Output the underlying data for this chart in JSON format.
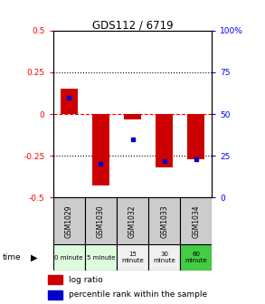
{
  "title": "GDS112 / 6719",
  "samples": [
    "GSM1029",
    "GSM1030",
    "GSM1032",
    "GSM1033",
    "GSM1034"
  ],
  "log_ratios": [
    0.15,
    -0.43,
    -0.03,
    -0.32,
    -0.27
  ],
  "percentile_ranks": [
    60,
    20,
    35,
    22,
    23
  ],
  "ylim_left": [
    -0.5,
    0.5
  ],
  "ylim_right": [
    0,
    100
  ],
  "yticks_left": [
    -0.5,
    -0.25,
    0,
    0.25,
    0.5
  ],
  "yticks_right": [
    0,
    25,
    50,
    75,
    100
  ],
  "ytick_labels_left": [
    "-0.5",
    "-0.25",
    "0",
    "0.25",
    "0.5"
  ],
  "ytick_labels_right": [
    "0",
    "25",
    "50",
    "75",
    "100%"
  ],
  "time_labels": [
    "0 minute",
    "5 minute",
    "15\nminute",
    "30\nminute",
    "60\nminute"
  ],
  "time_colors": [
    "#ddfcdd",
    "#ddfcdd",
    "#f0f0f0",
    "#f0f0f0",
    "#44cc44"
  ],
  "bar_color": "#cc0000",
  "dot_color": "#0000cc",
  "sample_bg": "#cccccc",
  "bar_width": 0.55,
  "background_color": "#ffffff",
  "fig_width": 2.93,
  "fig_height": 3.36,
  "dpi": 100
}
